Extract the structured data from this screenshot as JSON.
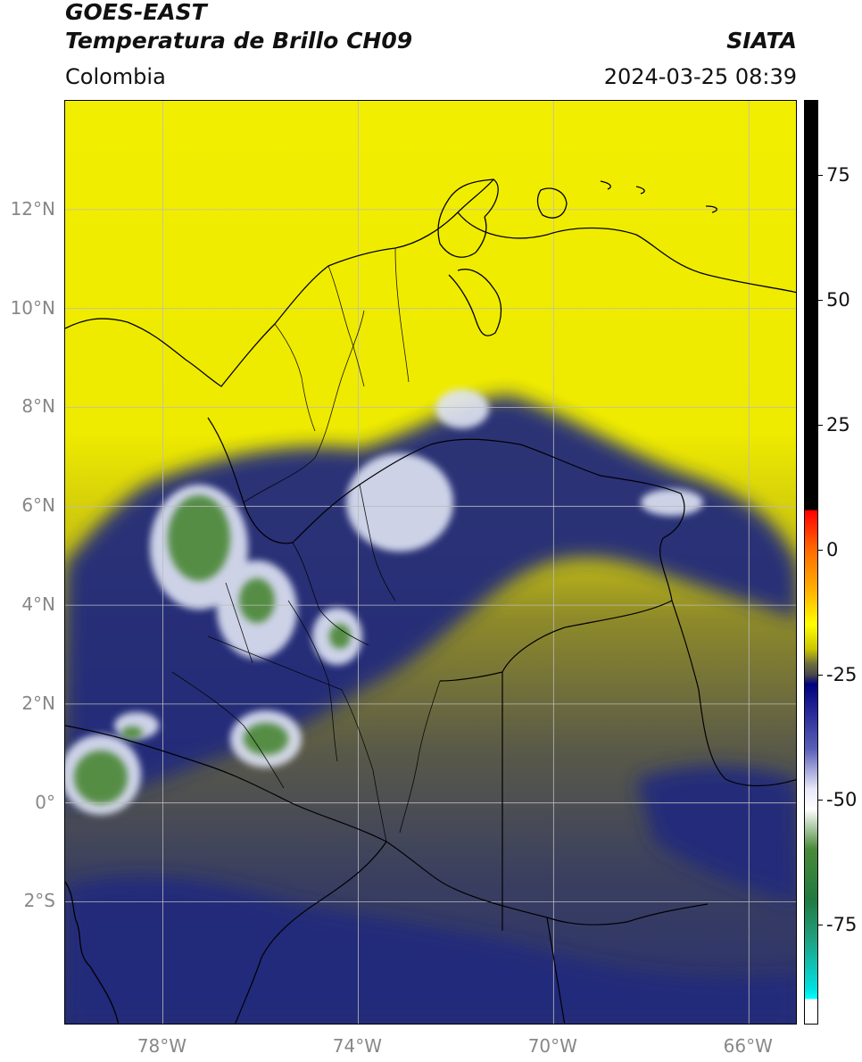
{
  "header": {
    "title_line1": "GOES-EAST",
    "title_line2": "Temperatura de Brillo CH09",
    "brand": "SIATA",
    "region": "Colombia",
    "timestamp": "2024-03-25 08:39"
  },
  "map": {
    "lat_range": [
      -4.5,
      14.2
    ],
    "lon_range": [
      -80.0,
      -65.0
    ],
    "lat_ticks": [
      {
        "value": 12,
        "label": "12°N"
      },
      {
        "value": 10,
        "label": "10°N"
      },
      {
        "value": 8,
        "label": "8°N"
      },
      {
        "value": 6,
        "label": "6°N"
      },
      {
        "value": 4,
        "label": "4°N"
      },
      {
        "value": 2,
        "label": "2°N"
      },
      {
        "value": 0,
        "label": "0°"
      },
      {
        "value": -2,
        "label": "2°S"
      }
    ],
    "lon_ticks": [
      {
        "value": -78,
        "label": "78°W"
      },
      {
        "value": -74,
        "label": "74°W"
      },
      {
        "value": -70,
        "label": "70°W"
      },
      {
        "value": -66,
        "label": "66°W"
      }
    ],
    "colors": {
      "warm": "#f2ee00",
      "mid": "#8e8a2a",
      "cool": "#4f4f52",
      "deep": "#232a7c",
      "cold": "#dfe4f4",
      "coldest": "#4f8a3c",
      "border": "#000000",
      "grid": "#bbbbbb"
    }
  },
  "colorbar": {
    "range": [
      -95,
      90
    ],
    "ticks": [
      {
        "value": 75,
        "label": "75"
      },
      {
        "value": 50,
        "label": "50"
      },
      {
        "value": 25,
        "label": "25"
      },
      {
        "value": 0,
        "label": "0"
      },
      {
        "value": -25,
        "label": "-25"
      },
      {
        "value": -50,
        "label": "-50"
      },
      {
        "value": -75,
        "label": "-75"
      }
    ],
    "stops": [
      {
        "value": 90,
        "color": "#000000"
      },
      {
        "value": 8,
        "color": "#000000"
      },
      {
        "value": 7.9,
        "color": "#ff0000"
      },
      {
        "value": 0,
        "color": "#ff6a00"
      },
      {
        "value": -8,
        "color": "#ffb000"
      },
      {
        "value": -15,
        "color": "#ffff00"
      },
      {
        "value": -20,
        "color": "#c9c400"
      },
      {
        "value": -23,
        "color": "#6a6a40"
      },
      {
        "value": -25,
        "color": "#4a4a4a"
      },
      {
        "value": -27,
        "color": "#000080"
      },
      {
        "value": -40,
        "color": "#5a60b8"
      },
      {
        "value": -48,
        "color": "#e8e8f8"
      },
      {
        "value": -52,
        "color": "#ffffff"
      },
      {
        "value": -60,
        "color": "#4a8a3a"
      },
      {
        "value": -70,
        "color": "#207a40"
      },
      {
        "value": -78,
        "color": "#20a080"
      },
      {
        "value": -88,
        "color": "#00e0e0"
      },
      {
        "value": -90,
        "color": "#00ffff"
      },
      {
        "value": -90.1,
        "color": "#ffffff"
      },
      {
        "value": -95,
        "color": "#ffffff"
      }
    ]
  }
}
